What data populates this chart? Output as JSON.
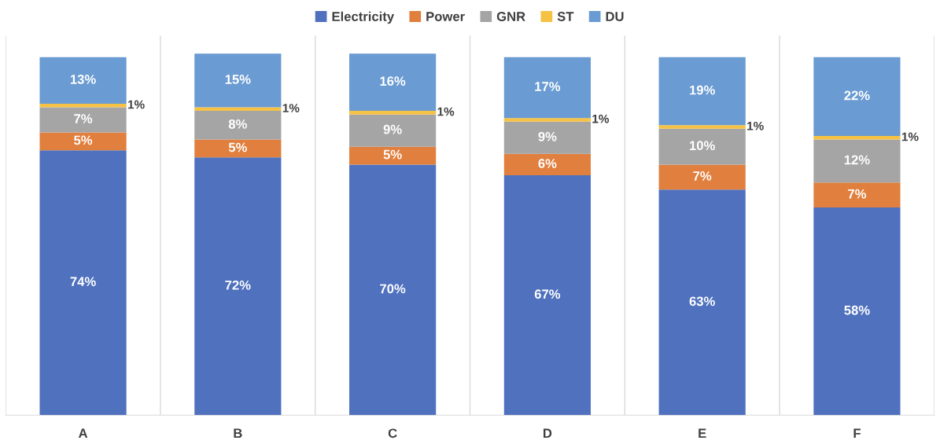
{
  "chart_data": {
    "type": "bar",
    "stacked": true,
    "categories": [
      "A",
      "B",
      "C",
      "D",
      "E",
      "F"
    ],
    "series": [
      {
        "name": "Electricity",
        "color": "#4f71be",
        "values": [
          74,
          72,
          70,
          67,
          63,
          58
        ],
        "value_labels": [
          "74%",
          "72%",
          "70%",
          "67%",
          "63%",
          "58%"
        ]
      },
      {
        "name": "Power",
        "color": "#e07f3e",
        "values": [
          5,
          5,
          5,
          6,
          7,
          7
        ],
        "value_labels": [
          "5%",
          "5%",
          "5%",
          "6%",
          "7%",
          "7%"
        ]
      },
      {
        "name": "GNR",
        "color": "#a5a5a5",
        "values": [
          7,
          8,
          9,
          9,
          10,
          12
        ],
        "value_labels": [
          "7%",
          "8%",
          "9%",
          "9%",
          "10%",
          "12%"
        ]
      },
      {
        "name": "ST",
        "color": "#f6c244",
        "values": [
          1,
          1,
          1,
          1,
          1,
          1
        ],
        "value_labels": [
          "1%",
          "1%",
          "1%",
          "1%",
          "1%",
          "1%"
        ]
      },
      {
        "name": "DU",
        "color": "#6a9bd2",
        "values": [
          13,
          15,
          16,
          17,
          19,
          22
        ],
        "value_labels": [
          "13%",
          "15%",
          "16%",
          "17%",
          "19%",
          "22%"
        ]
      }
    ],
    "legend": "top",
    "grid": "x"
  }
}
